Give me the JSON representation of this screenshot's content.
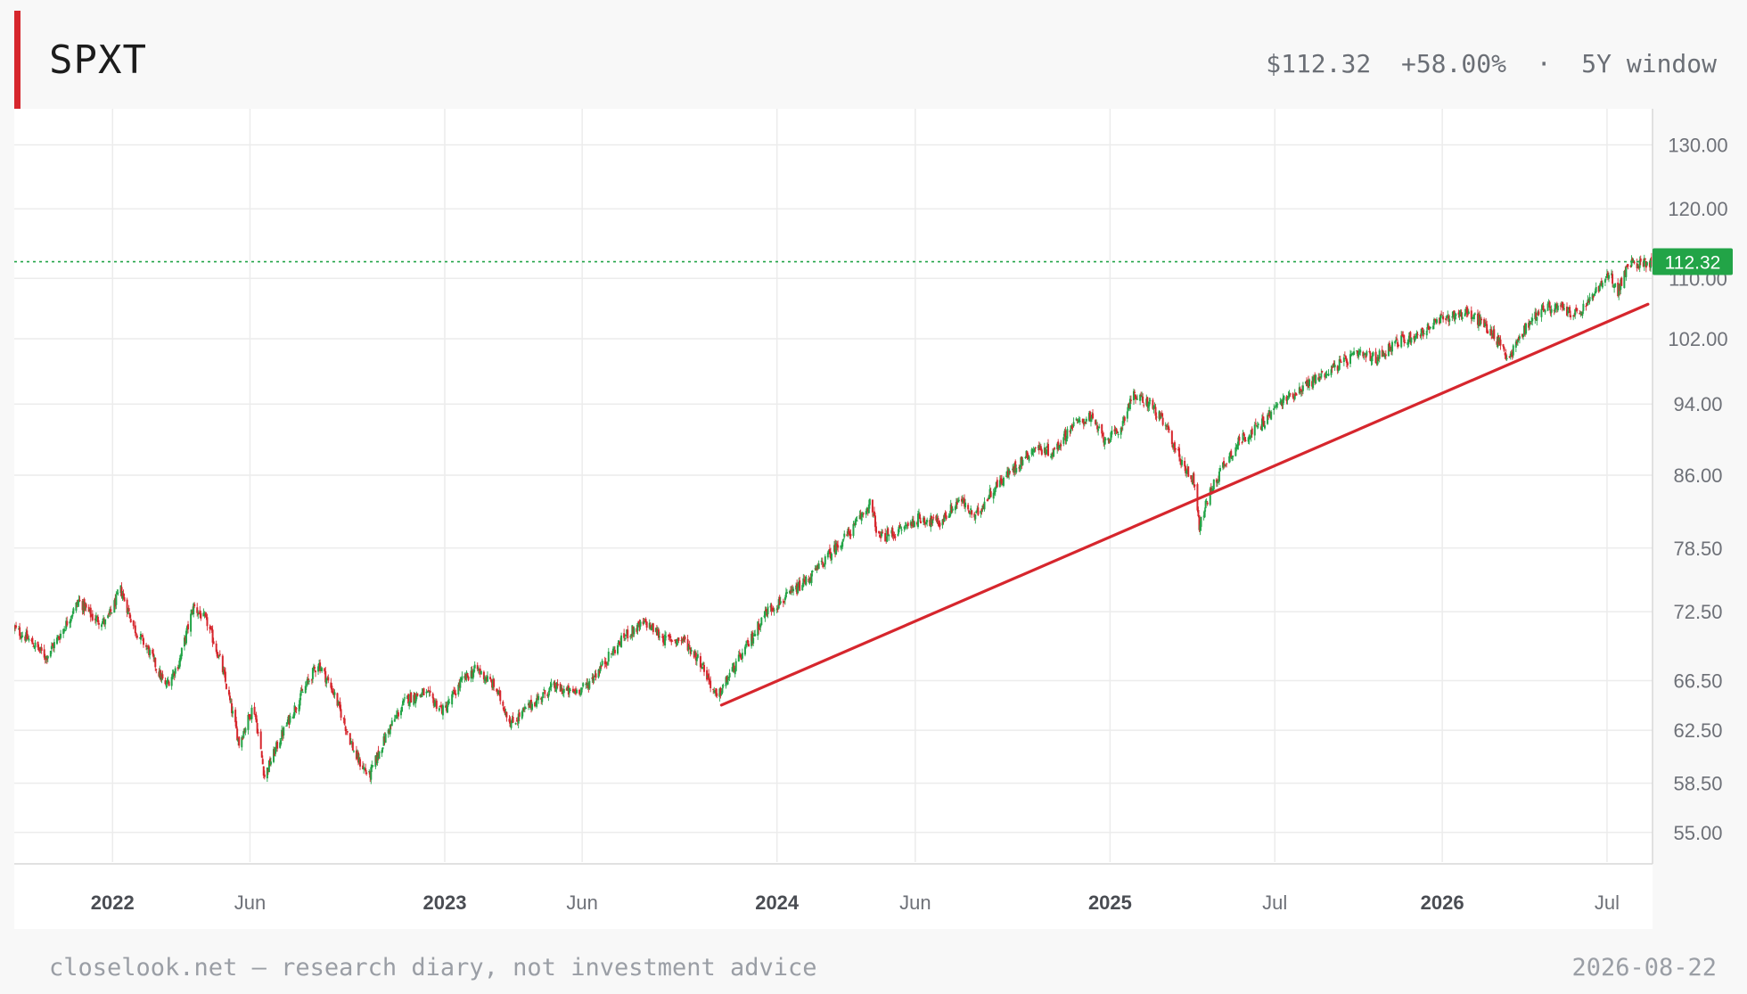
{
  "header": {
    "ticker": "SPXT",
    "price": "$112.32",
    "change": "+58.00%",
    "separator": "·",
    "window": "5Y window"
  },
  "footer": {
    "note": "closelook.net — research diary, not investment advice",
    "date": "2026-08-22"
  },
  "colors": {
    "up": "#22a447",
    "down": "#d6262d",
    "trendline": "#d6262d",
    "last_price_line": "#22a447",
    "accent": "#d6262d"
  },
  "chart_data": {
    "type": "candlestick",
    "yscale": "log",
    "ylim": [
      53.0,
      136.0
    ],
    "xlim": [
      "2021-09-15",
      "2026-08-20"
    ],
    "grid": true,
    "y_ticks": [
      "130.00",
      "120.00",
      "110.00",
      "102.00",
      "94.00",
      "86.00",
      "78.50",
      "72.50",
      "66.50",
      "62.50",
      "58.50",
      "55.00"
    ],
    "x_ticks": [
      {
        "date": "2022-01-01",
        "label": "2022",
        "bold": true
      },
      {
        "date": "2022-06-01",
        "label": "Jun",
        "bold": false
      },
      {
        "date": "2023-01-01",
        "label": "2023",
        "bold": true
      },
      {
        "date": "2023-06-01",
        "label": "Jun",
        "bold": false
      },
      {
        "date": "2024-01-01",
        "label": "2024",
        "bold": true
      },
      {
        "date": "2024-06-01",
        "label": "Jun",
        "bold": false
      },
      {
        "date": "2025-01-01",
        "label": "2025",
        "bold": true
      },
      {
        "date": "2025-07-01",
        "label": "Jul",
        "bold": false
      },
      {
        "date": "2026-01-01",
        "label": "2026",
        "bold": true
      },
      {
        "date": "2026-07-01",
        "label": "Jul",
        "bold": false
      }
    ],
    "last_price": 112.32,
    "last_price_label": "112.32",
    "trendline": {
      "start": [
        "2023-11-01",
        64.5
      ],
      "end": [
        "2026-08-15",
        106.5
      ]
    },
    "close_path": [
      [
        "2021-09-15",
        71.0
      ],
      [
        "2021-10-01",
        70.0
      ],
      [
        "2021-10-20",
        68.5
      ],
      [
        "2021-11-05",
        70.5
      ],
      [
        "2021-11-25",
        73.5
      ],
      [
        "2021-12-10",
        72.0
      ],
      [
        "2021-12-25",
        71.5
      ],
      [
        "2022-01-10",
        74.5
      ],
      [
        "2022-01-25",
        71.0
      ],
      [
        "2022-02-10",
        69.0
      ],
      [
        "2022-02-28",
        66.0
      ],
      [
        "2022-03-15",
        68.0
      ],
      [
        "2022-03-31",
        73.0
      ],
      [
        "2022-04-15",
        71.5
      ],
      [
        "2022-04-30",
        68.0
      ],
      [
        "2022-05-20",
        61.5
      ],
      [
        "2022-06-05",
        64.5
      ],
      [
        "2022-06-17",
        59.0
      ],
      [
        "2022-07-05",
        62.0
      ],
      [
        "2022-07-25",
        65.0
      ],
      [
        "2022-08-15",
        68.0
      ],
      [
        "2022-09-01",
        65.5
      ],
      [
        "2022-09-25",
        60.5
      ],
      [
        "2022-10-10",
        59.0
      ],
      [
        "2022-10-31",
        62.5
      ],
      [
        "2022-11-20",
        65.0
      ],
      [
        "2022-12-10",
        65.5
      ],
      [
        "2022-12-31",
        64.0
      ],
      [
        "2023-01-20",
        66.5
      ],
      [
        "2023-02-05",
        67.5
      ],
      [
        "2023-02-25",
        66.0
      ],
      [
        "2023-03-15",
        63.0
      ],
      [
        "2023-04-05",
        64.5
      ],
      [
        "2023-04-30",
        66.0
      ],
      [
        "2023-05-20",
        65.5
      ],
      [
        "2023-06-05",
        66.0
      ],
      [
        "2023-06-25",
        68.0
      ],
      [
        "2023-07-20",
        70.5
      ],
      [
        "2023-08-10",
        71.5
      ],
      [
        "2023-08-31",
        70.0
      ],
      [
        "2023-09-20",
        70.0
      ],
      [
        "2023-10-10",
        68.0
      ],
      [
        "2023-10-27",
        65.0
      ],
      [
        "2023-11-10",
        67.0
      ],
      [
        "2023-11-30",
        69.5
      ],
      [
        "2023-12-20",
        72.5
      ],
      [
        "2024-01-15",
        74.0
      ],
      [
        "2024-02-10",
        76.0
      ],
      [
        "2024-03-05",
        78.5
      ],
      [
        "2024-03-25",
        80.5
      ],
      [
        "2024-04-12",
        83.0
      ],
      [
        "2024-04-22",
        79.5
      ],
      [
        "2024-05-10",
        80.0
      ],
      [
        "2024-06-05",
        81.5
      ],
      [
        "2024-06-28",
        81.0
      ],
      [
        "2024-07-20",
        83.5
      ],
      [
        "2024-08-05",
        81.5
      ],
      [
        "2024-08-25",
        84.5
      ],
      [
        "2024-09-15",
        86.5
      ],
      [
        "2024-10-10",
        89.0
      ],
      [
        "2024-10-31",
        88.5
      ],
      [
        "2024-11-20",
        91.5
      ],
      [
        "2024-12-10",
        92.5
      ],
      [
        "2024-12-25",
        90.0
      ],
      [
        "2025-01-10",
        90.5
      ],
      [
        "2025-01-25",
        95.0
      ],
      [
        "2025-02-15",
        94.0
      ],
      [
        "2025-03-05",
        91.0
      ],
      [
        "2025-03-20",
        87.5
      ],
      [
        "2025-04-05",
        85.0
      ],
      [
        "2025-04-09",
        80.5
      ],
      [
        "2025-04-20",
        84.0
      ],
      [
        "2025-05-05",
        87.0
      ],
      [
        "2025-05-25",
        90.0
      ],
      [
        "2025-06-15",
        91.5
      ],
      [
        "2025-07-05",
        94.0
      ],
      [
        "2025-07-25",
        95.5
      ],
      [
        "2025-08-15",
        97.0
      ],
      [
        "2025-09-05",
        98.5
      ],
      [
        "2025-09-30",
        100.0
      ],
      [
        "2025-10-20",
        99.5
      ],
      [
        "2025-11-10",
        101.5
      ],
      [
        "2025-12-05",
        102.5
      ],
      [
        "2025-12-31",
        104.5
      ],
      [
        "2026-01-25",
        105.5
      ],
      [
        "2026-02-15",
        104.0
      ],
      [
        "2026-03-05",
        101.5
      ],
      [
        "2026-03-15",
        99.5
      ],
      [
        "2026-03-31",
        103.0
      ],
      [
        "2026-04-20",
        106.0
      ],
      [
        "2026-05-10",
        106.0
      ],
      [
        "2026-05-31",
        105.0
      ],
      [
        "2026-06-20",
        108.5
      ],
      [
        "2026-07-05",
        110.5
      ],
      [
        "2026-07-12",
        108.0
      ],
      [
        "2026-07-25",
        112.0
      ],
      [
        "2026-08-20",
        112.32
      ]
    ]
  }
}
